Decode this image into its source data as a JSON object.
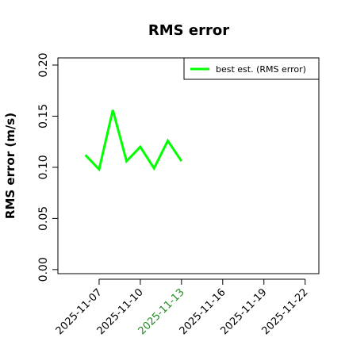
{
  "chart_data": {
    "type": "line",
    "title": "RMS error",
    "ylabel": "RMS error (m/s)",
    "x": [
      "2025-11-06",
      "2025-11-07",
      "2025-11-08",
      "2025-11-09",
      "2025-11-10",
      "2025-11-11",
      "2025-11-12",
      "2025-11-13"
    ],
    "series": [
      {
        "name": "best est. (RMS error)",
        "color": "#00ff00",
        "values": [
          0.112,
          0.098,
          0.156,
          0.106,
          0.12,
          0.099,
          0.126,
          0.106
        ]
      }
    ],
    "xlim": [
      "2025-11-04",
      "2025-11-23"
    ],
    "xticks": [
      "2025-11-07",
      "2025-11-10",
      "2025-11-13",
      "2025-11-16",
      "2025-11-19",
      "2025-11-22"
    ],
    "xtick_colors": [
      "#000000",
      "#000000",
      "#228b22",
      "#000000",
      "#000000",
      "#000000"
    ],
    "ylim": [
      -0.004,
      0.207
    ],
    "yticks": [
      {
        "value": 0,
        "label": "0.00"
      },
      0.05,
      {
        "value": 0.1,
        "label": "0.10"
      },
      0.15,
      {
        "value": 0.2,
        "label": "0.20"
      }
    ],
    "legend": "top-right"
  }
}
